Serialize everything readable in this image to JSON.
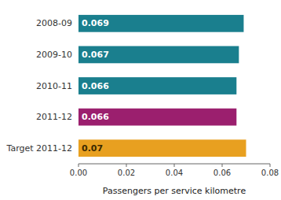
{
  "chart_data": {
    "type": "bar",
    "orientation": "horizontal",
    "categories": [
      "Target 2011-12",
      "2011-12",
      "2010-11",
      "2009-10",
      "2008-09"
    ],
    "values": [
      0.07,
      0.066,
      0.066,
      0.067,
      0.069
    ],
    "colors": [
      "#e8a020",
      "#9b1f6e",
      "#1a7f8e",
      "#1a7f8e",
      "#1a7f8e"
    ],
    "data_labels": true,
    "x_label": "Passengers per service kilometre",
    "xlim": [
      0,
      0.08
    ],
    "xticks": [
      {
        "value": 0,
        "label": "0.00"
      },
      0.02,
      0.04,
      0.06,
      0.08
    ],
    "grid": false
  }
}
